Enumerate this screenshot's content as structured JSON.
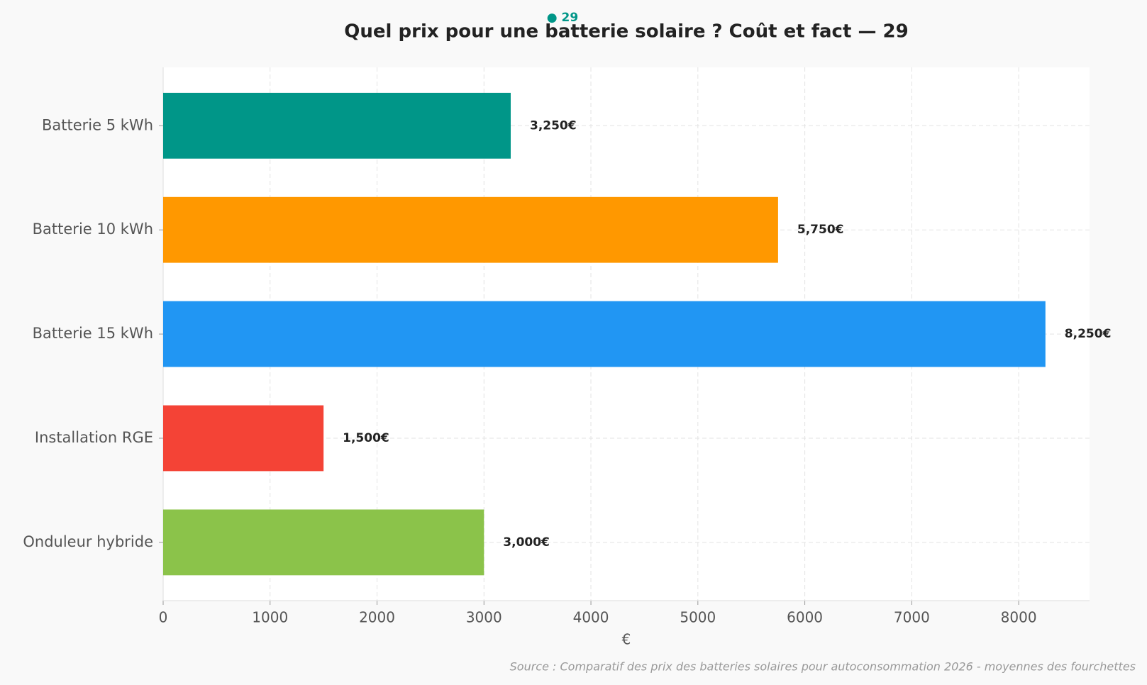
{
  "chart_data": {
    "type": "bar",
    "orientation": "horizontal",
    "badge": "● 29",
    "title": "Quel prix pour une batterie solaire ? Coût et fact — 29",
    "categories": [
      "Batterie 5 kWh",
      "Batterie 10 kWh",
      "Batterie 15 kWh",
      "Installation RGE",
      "Onduleur hybride"
    ],
    "values": [
      3250,
      5750,
      8250,
      1500,
      3000
    ],
    "value_labels": [
      "3,250€",
      "5,750€",
      "8,250€",
      "1,500€",
      "3,000€"
    ],
    "colors": [
      "#009688",
      "#ff9800",
      "#2196f3",
      "#f44336",
      "#8bc34a"
    ],
    "xlabel": "€",
    "xlim": [
      0,
      8662.5
    ],
    "xticks": [
      0,
      1000,
      2000,
      3000,
      4000,
      5000,
      6000,
      7000,
      8000
    ],
    "grid": true,
    "source": "Source : Comparatif des prix des batteries solaires pour autoconsommation 2026 - moyennes des fourchettes"
  }
}
